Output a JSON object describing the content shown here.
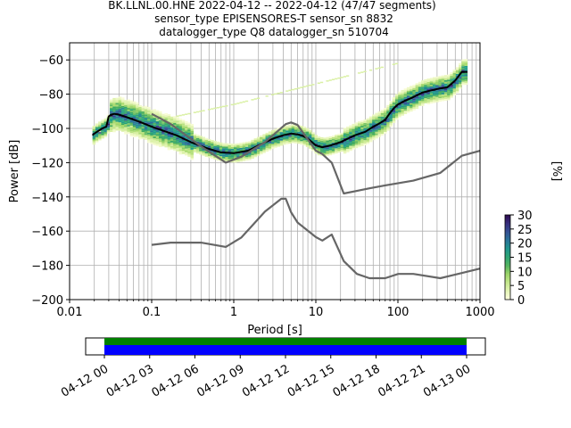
{
  "chart_data": {
    "type": "heatmap",
    "title_lines": [
      "BK.LLNL.00.HNE   2022-04-12 -- 2022-04-12  (47/47 segments)",
      "sensor_type EPISENSORES-T sensor_sn 8832",
      "datalogger_type Q8 datalogger_sn 510704"
    ],
    "xlabel": "Period [s]",
    "ylabel": "Power [dB]",
    "xscale": "log",
    "xlim": [
      0.01,
      1000
    ],
    "ylim": [
      -200,
      -50
    ],
    "grid": true,
    "x_ticks": [
      0.01,
      0.1,
      1,
      10,
      100,
      1000
    ],
    "x_tick_labels": [
      "0.01",
      "0.1",
      "1",
      "10",
      "100",
      "1000"
    ],
    "y_ticks": [
      -200,
      -180,
      -160,
      -140,
      -120,
      -100,
      -80,
      -60
    ],
    "y_tick_labels": [
      "−200",
      "−180",
      "−160",
      "−140",
      "−120",
      "−100",
      "−80",
      "−60"
    ],
    "colorbar": {
      "label": "[%]",
      "ticks": [
        0,
        5,
        10,
        15,
        20,
        25,
        30
      ],
      "tick_labels": [
        "0",
        "5",
        "10",
        "15",
        "20",
        "25",
        "30"
      ],
      "range": [
        0,
        30
      ],
      "colormap": [
        "#ffffe0",
        "#d9f0a3",
        "#a6d96a",
        "#41ab5d",
        "#1d9e8a",
        "#2c6f9a",
        "#3b3b8f",
        "#2d0a4e"
      ]
    },
    "series": [
      {
        "role": "mean",
        "color": "#000000",
        "x": [
          0.019,
          0.02,
          0.025,
          0.028,
          0.03,
          0.032,
          0.035,
          0.04,
          0.05,
          0.07,
          0.1,
          0.2,
          0.3,
          0.5,
          0.7,
          1,
          1.5,
          2,
          3,
          4,
          5,
          6,
          7,
          8,
          9,
          10,
          12,
          15,
          20,
          30,
          40,
          50,
          60,
          70,
          80,
          90,
          100,
          120,
          150,
          200,
          300,
          400,
          500,
          600,
          700
        ],
        "y": [
          -104,
          -103,
          -100,
          -99,
          -93,
          -92,
          -91.5,
          -92,
          -93.5,
          -96,
          -99,
          -104,
          -108,
          -112,
          -114,
          -114.5,
          -113,
          -110,
          -106,
          -104,
          -103,
          -103.5,
          -104.5,
          -106,
          -108,
          -110,
          -111,
          -110,
          -108,
          -104,
          -102,
          -99,
          -97,
          -95,
          -91,
          -88,
          -86,
          -84,
          -82,
          -79,
          -77,
          -76,
          -72,
          -67,
          -67
        ]
      },
      {
        "role": "noise-model-high",
        "color": "#666666",
        "x": [
          0.1,
          0.17,
          0.4,
          0.8,
          1.24,
          2.4,
          4.3,
          5,
          6,
          10,
          12,
          15.6,
          21.9,
          31.6,
          45,
          70,
          101,
          154,
          328,
          600,
          10000
        ],
        "y": [
          -91.5,
          -97.4,
          -110.5,
          -120,
          -116.5,
          -108,
          -97.5,
          -96.5,
          -98,
          -113,
          -115,
          -120,
          -138,
          -136.5,
          -135,
          -133.3,
          -132,
          -130.5,
          -126,
          -116,
          -100
        ]
      },
      {
        "role": "noise-model-low",
        "color": "#666666",
        "x": [
          0.1,
          0.17,
          0.4,
          0.8,
          1.24,
          2.4,
          3.8,
          4.3,
          5,
          6,
          10,
          12,
          15.6,
          21.9,
          31.6,
          45,
          70,
          101,
          154,
          328,
          600,
          10000
        ],
        "y": [
          -168,
          -166.7,
          -166.7,
          -169.2,
          -163.7,
          -148.6,
          -141.1,
          -141.1,
          -149,
          -155,
          -163.5,
          -165.5,
          -162,
          -177.5,
          -185,
          -187.5,
          -187.5,
          -185,
          -185,
          -187.5,
          -184.5,
          -170
        ]
      },
      {
        "role": "faint-spur",
        "color": "#d9f0a3",
        "x": [
          0.03,
          0.1,
          1,
          10,
          100,
          600
        ],
        "y": [
          -102,
          -96,
          -86,
          -74,
          -62,
          -55
        ]
      }
    ],
    "time_axis": {
      "tick_labels": [
        "04-12 00",
        "04-12 03",
        "04-12 06",
        "04-12 09",
        "04-12 12",
        "04-12 15",
        "04-12 18",
        "04-12 21",
        "04-13 00"
      ],
      "coverage_colors": [
        "#008000",
        "#0000ff"
      ]
    }
  }
}
